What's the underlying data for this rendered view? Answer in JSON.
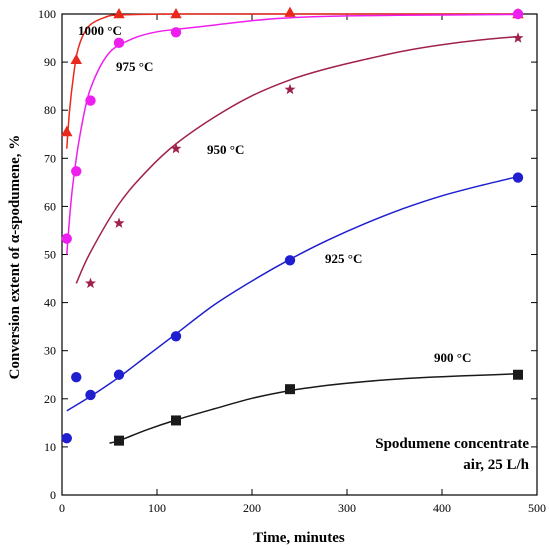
{
  "chart_data": {
    "type": "scatter",
    "xlabel": "Time, minutes",
    "ylabel": "Conversion extent of α-spodumene, %",
    "xlim": [
      0,
      500
    ],
    "ylim": [
      0,
      100
    ],
    "xticks": [
      0,
      100,
      200,
      300,
      400,
      500
    ],
    "yticks": [
      0,
      10,
      20,
      30,
      40,
      50,
      60,
      70,
      80,
      90,
      100
    ],
    "grid": false,
    "annotation": [
      "Spodumene concentrate",
      "air, 25 L/h"
    ],
    "series": [
      {
        "name": "1000 °C",
        "color": "#e8291c",
        "marker": "triangle",
        "points": [
          [
            5,
            75.5
          ],
          [
            15,
            90.5
          ],
          [
            60,
            100
          ],
          [
            120,
            100
          ],
          [
            240,
            100.3
          ],
          [
            480,
            100
          ]
        ],
        "curve": [
          [
            5,
            72
          ],
          [
            8,
            80
          ],
          [
            12,
            87
          ],
          [
            16,
            92
          ],
          [
            22,
            95.5
          ],
          [
            30,
            97.8
          ],
          [
            45,
            99.3
          ],
          [
            60,
            99.8
          ],
          [
            120,
            100
          ],
          [
            240,
            100
          ],
          [
            480,
            100
          ]
        ]
      },
      {
        "name": "975 °C",
        "color": "#ee1fee",
        "marker": "circle",
        "points": [
          [
            5,
            53.3
          ],
          [
            15,
            67.3
          ],
          [
            30,
            82
          ],
          [
            60,
            94
          ],
          [
            120,
            96.2
          ],
          [
            480,
            100
          ]
        ],
        "curve": [
          [
            5,
            50
          ],
          [
            10,
            62
          ],
          [
            15,
            70
          ],
          [
            20,
            76
          ],
          [
            25,
            81
          ],
          [
            30,
            84.5
          ],
          [
            40,
            89
          ],
          [
            50,
            92
          ],
          [
            60,
            93.5
          ],
          [
            80,
            95.3
          ],
          [
            100,
            96.3
          ],
          [
            120,
            96.8
          ],
          [
            160,
            97.7
          ],
          [
            200,
            98.6
          ],
          [
            240,
            99.2
          ],
          [
            300,
            99.6
          ],
          [
            400,
            99.8
          ],
          [
            480,
            99.9
          ]
        ]
      },
      {
        "name": "950 °C",
        "color": "#a0224a",
        "marker": "star",
        "points": [
          [
            30,
            44
          ],
          [
            60,
            56.5
          ],
          [
            120,
            72
          ],
          [
            240,
            84.3
          ],
          [
            480,
            95
          ]
        ],
        "curve": [
          [
            15,
            44
          ],
          [
            30,
            50.5
          ],
          [
            60,
            60.5
          ],
          [
            90,
            67.5
          ],
          [
            120,
            73
          ],
          [
            160,
            78.5
          ],
          [
            200,
            83
          ],
          [
            240,
            86.3
          ],
          [
            280,
            88.7
          ],
          [
            320,
            90.6
          ],
          [
            360,
            92.3
          ],
          [
            400,
            93.6
          ],
          [
            440,
            94.6
          ],
          [
            480,
            95.3
          ]
        ]
      },
      {
        "name": "925 °C",
        "color": "#1f1fd0",
        "marker": "circle",
        "points": [
          [
            5,
            11.8
          ],
          [
            15,
            24.5
          ],
          [
            30,
            20.8
          ],
          [
            60,
            25
          ],
          [
            120,
            33
          ],
          [
            240,
            48.8
          ],
          [
            480,
            66
          ]
        ],
        "curve": [
          [
            5,
            17.5
          ],
          [
            30,
            20.5
          ],
          [
            60,
            24.5
          ],
          [
            90,
            29
          ],
          [
            120,
            33.5
          ],
          [
            160,
            39.5
          ],
          [
            200,
            44.5
          ],
          [
            240,
            49
          ],
          [
            280,
            53
          ],
          [
            320,
            56.5
          ],
          [
            360,
            59.6
          ],
          [
            400,
            62.2
          ],
          [
            440,
            64.3
          ],
          [
            480,
            66.2
          ]
        ]
      },
      {
        "name": "900 °C",
        "color": "#1a1a1a",
        "marker": "square",
        "points": [
          [
            60,
            11.3
          ],
          [
            120,
            15.5
          ],
          [
            240,
            22
          ],
          [
            480,
            25
          ]
        ],
        "curve": [
          [
            50,
            10.8
          ],
          [
            60,
            11.3
          ],
          [
            90,
            13.6
          ],
          [
            120,
            15.6
          ],
          [
            160,
            17.9
          ],
          [
            200,
            20.1
          ],
          [
            240,
            21.7
          ],
          [
            280,
            22.8
          ],
          [
            320,
            23.6
          ],
          [
            360,
            24.2
          ],
          [
            400,
            24.6
          ],
          [
            440,
            24.9
          ],
          [
            480,
            25.2
          ]
        ]
      }
    ]
  }
}
